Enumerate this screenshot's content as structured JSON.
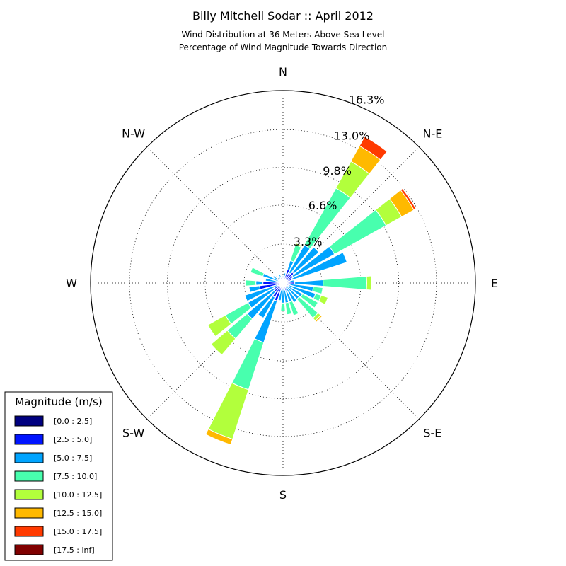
{
  "chart_data": {
    "type": "windrose",
    "title": "Billy Mitchell Sodar :: April 2012",
    "subtitle_lines": [
      "Wind Distribution at 36 Meters Above Sea Level",
      "Percentage of Wind Magnitude Towards Direction"
    ],
    "direction_labels": [
      {
        "label": "N",
        "angle_deg": 0
      },
      {
        "label": "N-E",
        "angle_deg": 45
      },
      {
        "label": "E",
        "angle_deg": 90
      },
      {
        "label": "S-E",
        "angle_deg": 135
      },
      {
        "label": "S",
        "angle_deg": 180
      },
      {
        "label": "S-W",
        "angle_deg": 225
      },
      {
        "label": "W",
        "angle_deg": 270
      },
      {
        "label": "N-W",
        "angle_deg": 315
      }
    ],
    "radial_max_percent": 16.3,
    "radial_rings": [
      {
        "value": 3.3,
        "label": "3.3%"
      },
      {
        "value": 6.6,
        "label": "6.6%"
      },
      {
        "value": 9.8,
        "label": "9.8%"
      },
      {
        "value": 13.0,
        "label": "13.0%"
      },
      {
        "value": 16.3,
        "label": "16.3%"
      }
    ],
    "legend": {
      "title": "Magnitude (m/s)",
      "placement": "lower-left",
      "bins": [
        {
          "label": "[0.0 : 2.5]",
          "color": "#000080"
        },
        {
          "label": "[2.5 : 5.0]",
          "color": "#0014ff"
        },
        {
          "label": "[5.0 : 7.5]",
          "color": "#00a4ff"
        },
        {
          "label": "[7.5 : 10.0]",
          "color": "#48ffae"
        },
        {
          "label": "[10.0 : 12.5]",
          "color": "#b2ff3c"
        },
        {
          "label": "[12.5 : 15.0]",
          "color": "#ffb900"
        },
        {
          "label": "[15.0 : 17.5]",
          "color": "#ff3a00"
        },
        {
          "label": "[17.5 : inf]",
          "color": "#800000"
        }
      ]
    },
    "sectors": [
      {
        "direction_deg": 0,
        "cumulative": [
          0.08,
          0.4,
          0.6
        ]
      },
      {
        "direction_deg": 11.25,
        "cumulative": [
          0.1,
          0.6,
          0.85
        ]
      },
      {
        "direction_deg": 22.5,
        "cumulative": [
          0.12,
          1.2,
          2.0,
          3.4,
          3.55
        ]
      },
      {
        "direction_deg": 33.75,
        "cumulative": [
          0.15,
          1.0,
          3.7,
          9.2,
          11.8,
          13.3,
          14.2
        ]
      },
      {
        "direction_deg": 45,
        "cumulative": [
          0.15,
          1.2,
          4.0
        ]
      },
      {
        "direction_deg": 56.25,
        "cumulative": [
          0.15,
          1.0,
          5.0,
          10.0,
          11.5,
          12.7,
          12.9
        ]
      },
      {
        "direction_deg": 67.5,
        "cumulative": [
          0.12,
          0.8,
          5.7
        ]
      },
      {
        "direction_deg": 78.75,
        "cumulative": [
          0.1,
          0.6,
          1.0
        ]
      },
      {
        "direction_deg": 90,
        "cumulative": [
          0.1,
          1.0,
          3.4,
          7.1,
          7.5
        ]
      },
      {
        "direction_deg": 101.25,
        "cumulative": [
          0.1,
          0.6,
          2.6,
          3.4
        ]
      },
      {
        "direction_deg": 112.5,
        "cumulative": [
          0.1,
          0.5,
          2.9,
          3.4,
          4.0
        ]
      },
      {
        "direction_deg": 123.75,
        "cumulative": [
          0.1,
          0.5,
          1.9,
          3.4
        ]
      },
      {
        "direction_deg": 135,
        "cumulative": [
          0.1,
          0.5,
          1.8,
          3.9,
          4.2,
          4.35
        ]
      },
      {
        "direction_deg": 146.25,
        "cumulative": [
          0.1,
          0.4,
          1.9
        ]
      },
      {
        "direction_deg": 157.5,
        "cumulative": [
          0.1,
          0.7,
          1.7,
          2.9
        ]
      },
      {
        "direction_deg": 168.75,
        "cumulative": [
          0.1,
          0.6,
          1.7,
          2.7
        ]
      },
      {
        "direction_deg": 180,
        "cumulative": [
          0.1,
          0.5,
          1.7,
          2.4
        ]
      },
      {
        "direction_deg": 191.25,
        "cumulative": [
          0.1,
          0.6,
          1.5
        ]
      },
      {
        "direction_deg": 202.5,
        "cumulative": [
          0.15,
          1.6,
          5.3,
          9.5,
          13.9,
          14.4
        ]
      },
      {
        "direction_deg": 213.75,
        "cumulative": [
          0.1,
          1.4,
          3.4
        ]
      },
      {
        "direction_deg": 225,
        "cumulative": [
          0.15,
          1.0,
          4.0,
          6.2,
          8.0
        ]
      },
      {
        "direction_deg": 236.25,
        "cumulative": [
          0.15,
          0.9,
          3.4,
          5.6,
          7.3
        ]
      },
      {
        "direction_deg": 247.5,
        "cumulative": [
          0.1,
          0.5,
          3.4
        ]
      },
      {
        "direction_deg": 258.75,
        "cumulative": [
          0.1,
          2.0,
          2.9
        ]
      },
      {
        "direction_deg": 270,
        "cumulative": [
          0.1,
          1.7,
          2.3,
          3.2
        ]
      },
      {
        "direction_deg": 281.25,
        "cumulative": [
          0.1,
          0.5,
          1.5
        ]
      },
      {
        "direction_deg": 292.5,
        "cumulative": [
          0.1,
          0.4,
          1.8,
          2.9
        ]
      },
      {
        "direction_deg": 303.75,
        "cumulative": [
          0.1,
          0.5,
          1.0
        ]
      },
      {
        "direction_deg": 315,
        "cumulative": [
          0.08,
          0.3,
          0.4
        ]
      },
      {
        "direction_deg": 326.25,
        "cumulative": [
          0.08,
          0.3,
          0.6
        ]
      },
      {
        "direction_deg": 337.5,
        "cumulative": [
          0.08,
          0.5,
          0.8
        ]
      },
      {
        "direction_deg": 348.75,
        "cumulative": [
          0.08,
          0.3,
          0.5
        ]
      }
    ]
  }
}
